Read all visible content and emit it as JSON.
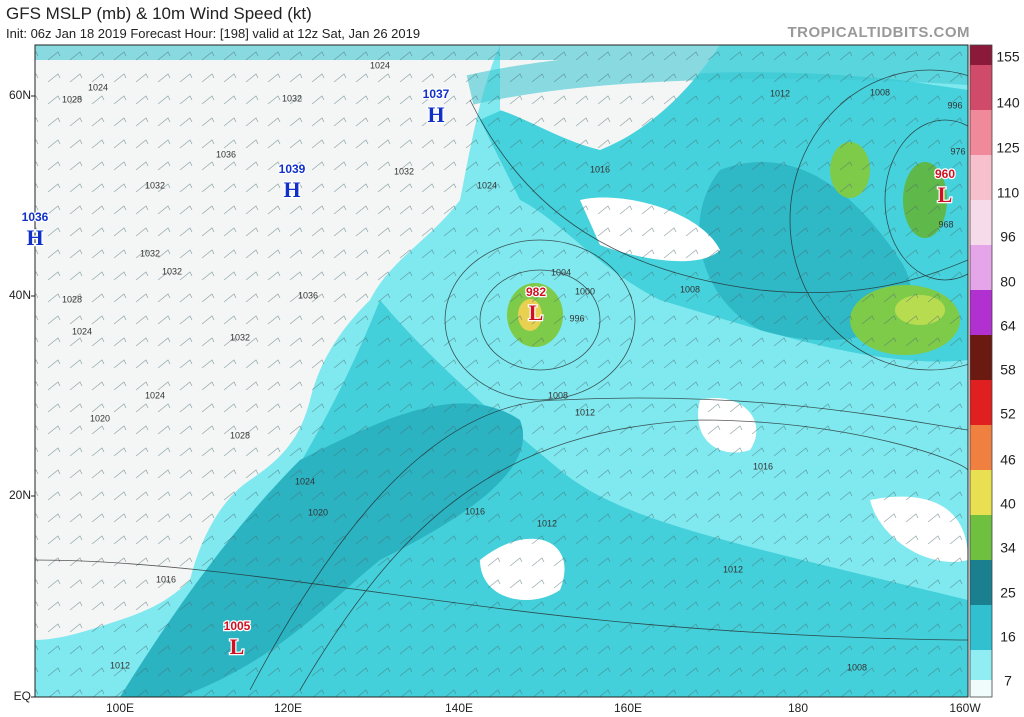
{
  "header": {
    "title": "GFS MSLP (mb) & 10m Wind Speed (kt)",
    "subtitle": "Init: 06z Jan 18 2019   Forecast Hour: [198]   valid at 12z Sat, Jan 26 2019",
    "site": "TROPICALTIDBITS.COM"
  },
  "map": {
    "lat_labels": [
      "60N",
      "40N",
      "20N",
      "EQ"
    ],
    "lon_labels": [
      "100E",
      "120E",
      "140E",
      "160E",
      "180",
      "160W"
    ],
    "centers": [
      {
        "symbol": "H",
        "value": "1037"
      },
      {
        "symbol": "H",
        "value": "1039"
      },
      {
        "symbol": "H",
        "value": "1036"
      },
      {
        "symbol": "L",
        "value": "982"
      },
      {
        "symbol": "L",
        "value": "960"
      },
      {
        "symbol": "L",
        "value": "1005"
      }
    ],
    "isobar_labels": [
      "1024",
      "1028",
      "1032",
      "1024",
      "1036",
      "1032",
      "1032",
      "1032",
      "1036",
      "1032",
      "1028",
      "1032",
      "1016",
      "1024",
      "1004",
      "1000",
      "996",
      "1008",
      "1012",
      "1008",
      "1012",
      "1008",
      "996",
      "976",
      "968",
      "1016",
      "1024",
      "1020",
      "1016",
      "1012",
      "1012",
      "1016",
      "1012",
      "1008",
      "1024",
      "1028",
      "1024",
      "1020"
    ]
  },
  "colorbar": {
    "ticks": [
      155,
      140,
      125,
      110,
      96,
      80,
      64,
      58,
      52,
      46,
      40,
      34,
      25,
      16,
      7
    ]
  }
}
